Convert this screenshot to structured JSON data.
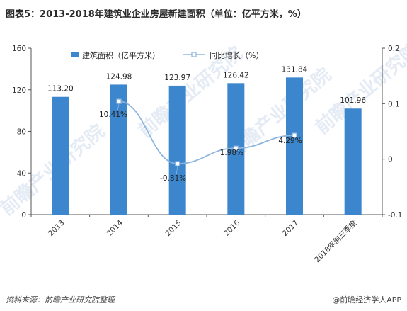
{
  "title": "图表5：2013-2018年建筑业企业房屋新建面积（单位：亿平方米，%）",
  "footer": {
    "source": "资料来源：前瞻产业研究院整理",
    "brand": "@前瞻经济学人APP"
  },
  "watermark": "前瞻产业研究院",
  "colors": {
    "bar": "#3b86cc",
    "line": "#8db5df",
    "marker_fill": "#ffffff",
    "marker_stroke": "#8db5df"
  },
  "chart_data": {
    "type": "bar",
    "categories": [
      "2013",
      "2014",
      "2015",
      "2016",
      "2017",
      "2018年前三季度"
    ],
    "series": [
      {
        "name": "建筑面积（亿平方米）",
        "type": "bar",
        "axis": "left",
        "values": [
          113.2,
          124.98,
          123.97,
          126.42,
          131.84,
          101.96
        ],
        "labels": [
          "113.20",
          "124.98",
          "123.97",
          "126.42",
          "131.84",
          "101.96"
        ]
      },
      {
        "name": "同比增长（%）",
        "type": "line",
        "axis": "right",
        "values": [
          null,
          0.1041,
          -0.0081,
          0.0198,
          0.0429,
          null
        ],
        "labels": [
          "",
          "10.41%",
          "-0.81%",
          "1.98%",
          "4.29%",
          ""
        ]
      }
    ],
    "y_left": {
      "ylim": [
        0,
        160
      ],
      "ticks": [
        "0",
        "40",
        "80",
        "120",
        "160"
      ]
    },
    "y_right": {
      "ylim": [
        -0.1,
        0.2
      ],
      "ticks": [
        "-0.1",
        "0",
        "0.1",
        "0.2"
      ]
    },
    "legend": "top"
  }
}
